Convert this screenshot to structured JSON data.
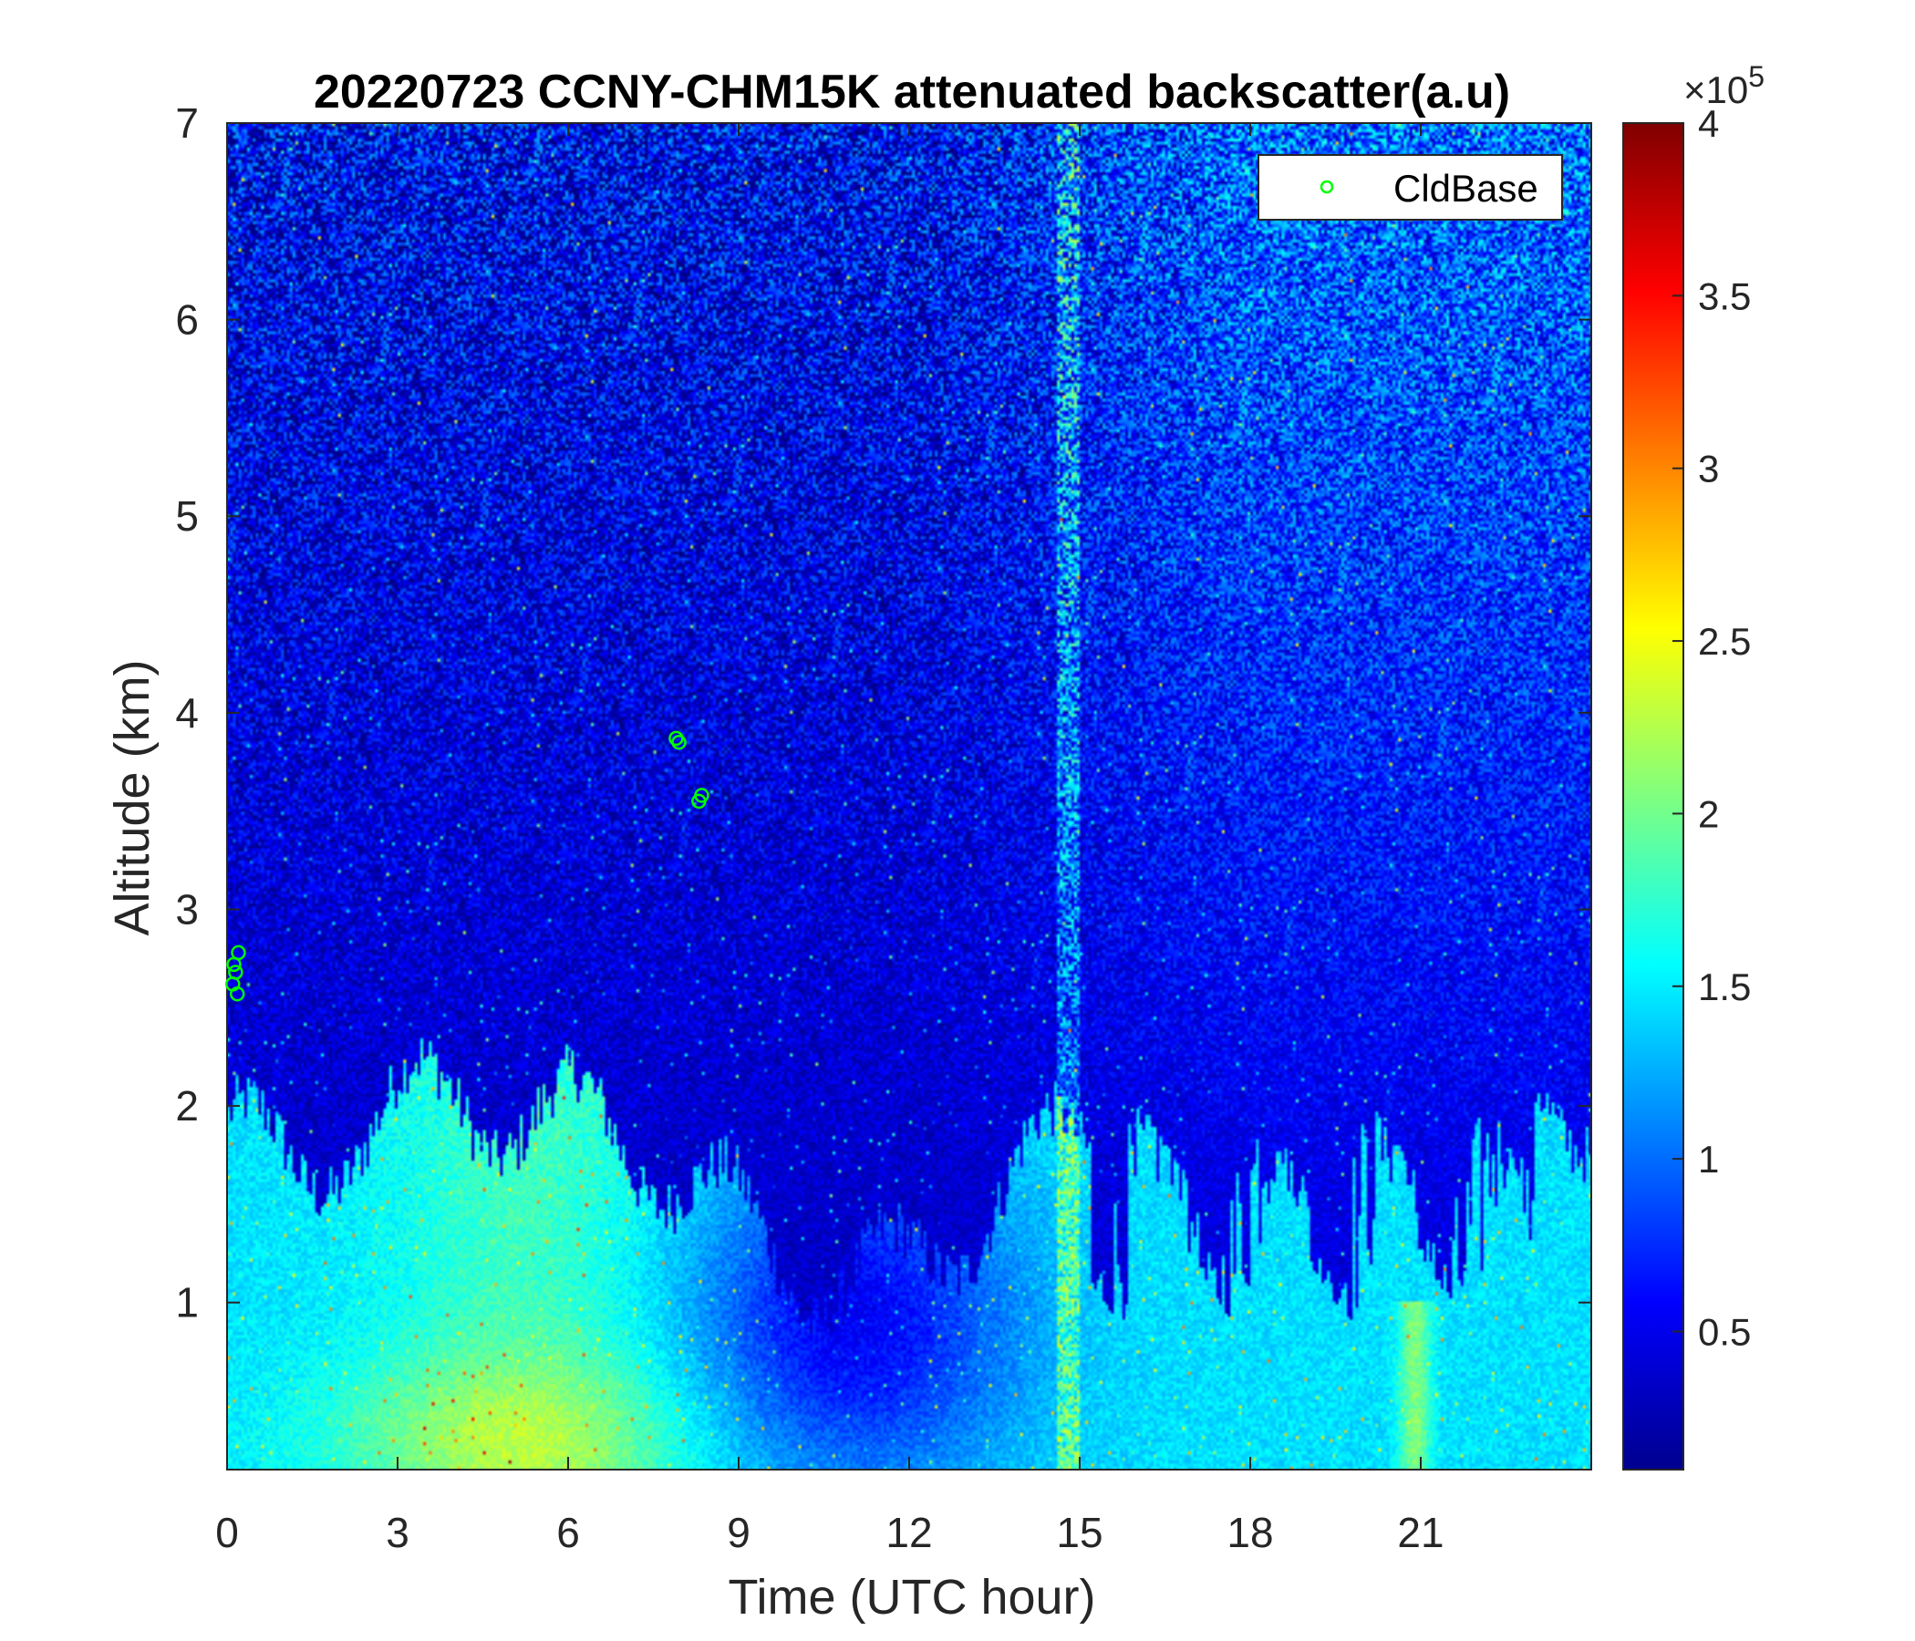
{
  "chart_data": {
    "type": "heatmap",
    "title": "20220723 CCNY-CHM15K attenuated backscatter(a.u)",
    "xlabel": "Time (UTC hour)",
    "ylabel": "Altitude (km)",
    "xlim": [
      0,
      24
    ],
    "ylim": [
      0.15,
      7
    ],
    "x_ticks": [
      "0",
      "3",
      "6",
      "9",
      "12",
      "15",
      "18",
      "21"
    ],
    "x_tick_values": [
      0,
      3,
      6,
      9,
      12,
      15,
      18,
      21
    ],
    "y_ticks": [
      "1",
      "2",
      "3",
      "4",
      "5",
      "6",
      "7"
    ],
    "y_tick_values": [
      1,
      2,
      3,
      4,
      5,
      6,
      7
    ],
    "colorbar": {
      "colormap": "jet",
      "range": [
        0.1,
        4
      ],
      "ticks": [
        "0.5",
        "1",
        "1.5",
        "2",
        "2.5",
        "3",
        "3.5",
        "4"
      ],
      "tick_values": [
        0.5,
        1,
        1.5,
        2,
        2.5,
        3,
        3.5,
        4
      ],
      "exponent_label": "×10",
      "exponent": "5"
    },
    "legend": {
      "position": "top-right",
      "entries": [
        {
          "name": "CldBase",
          "marker": "circle",
          "color": "#00ff00"
        }
      ]
    },
    "series": [
      {
        "name": "CldBase",
        "type": "scatter",
        "x": [
          0.1,
          0.15,
          0.12,
          0.2,
          0.18,
          7.9,
          7.95,
          8.3,
          8.35
        ],
        "y": [
          2.62,
          2.68,
          2.72,
          2.78,
          2.57,
          3.87,
          3.85,
          3.55,
          3.58
        ]
      }
    ],
    "field_description": {
      "low_levels": "aerosol layer 1.2-2.2 (x10^5) below ~2 km with plumes",
      "upper_levels": "noisy background 0.3-0.8 (x10^5) rising toward afternoon",
      "grid": false
    }
  }
}
